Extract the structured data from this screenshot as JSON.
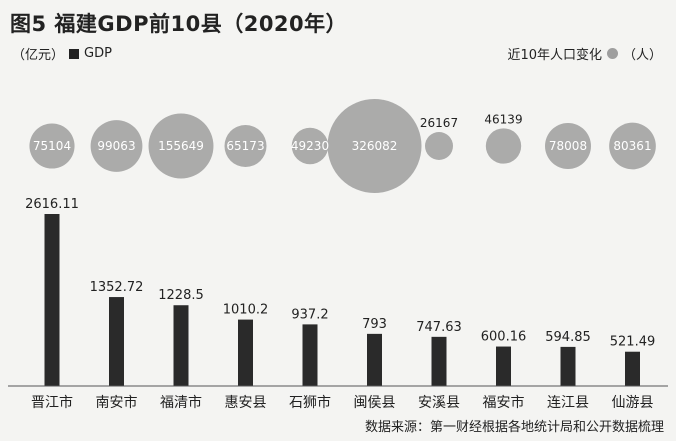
{
  "header": {
    "title": "图5 福建GDP前10县（2020年）",
    "unit_label": "（亿元）",
    "gdp_legend": "GDP",
    "pop_legend_text": "近10年人口变化",
    "pop_legend_unit": "（人）"
  },
  "footer": {
    "source": "数据来源：第一财经根据各地统计局和公开数据梳理"
  },
  "colors": {
    "bar": "#2a2a2a",
    "bubble": "#9e9e9e",
    "bubble_overlap": "#6f6f6f",
    "baseline": "#555555"
  },
  "chart_data": {
    "type": "bar",
    "categories": [
      "晋江市",
      "南安市",
      "福清市",
      "惠安县",
      "石狮市",
      "闽侯县",
      "安溪县",
      "福安市",
      "连江县",
      "仙游县"
    ],
    "series": [
      {
        "values": [
          2616.11,
          1352.72,
          1228.5,
          1010.2,
          937.2,
          793,
          747.63,
          600.16,
          594.85,
          521.49
        ],
        "labels": [
          "2616.11",
          "1352.72",
          "1228.5",
          "1010.2",
          "937.2",
          "793",
          "747.63",
          "600.16",
          "594.85",
          "521.49"
        ]
      },
      {
        "values": [
          75104,
          99063,
          155649,
          65173,
          49230,
          326082,
          26167,
          46139,
          78008,
          80361
        ],
        "labels": [
          "75104",
          "99063",
          "155649",
          "65173",
          "49230",
          "326082",
          "26167",
          "46139",
          "78008",
          "80361"
        ]
      }
    ]
  }
}
